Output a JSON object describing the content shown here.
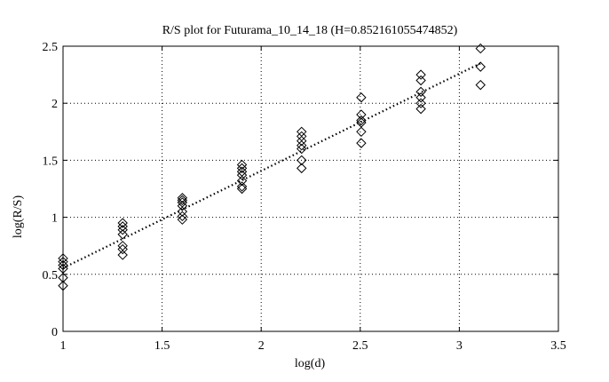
{
  "chart_data": {
    "type": "scatter",
    "title": "R/S plot for Futurama_10_14_18 (H=0.852161055474852)",
    "xlabel": "log(d)",
    "ylabel": "log(R/S)",
    "xlim": [
      1,
      3.5
    ],
    "ylim": [
      0,
      2.5
    ],
    "xticks": [
      1,
      1.5,
      2,
      2.5,
      3,
      3.5
    ],
    "yticks": [
      0,
      0.5,
      1,
      1.5,
      2,
      2.5
    ],
    "xtick_labels": [
      "1",
      "1.5",
      "2",
      "2.5",
      "3",
      "3.5"
    ],
    "ytick_labels": [
      "0",
      "0.5",
      "1",
      "1.5",
      "2",
      "2.5"
    ],
    "grid": true,
    "marker": "open-diamond",
    "series": [
      {
        "values_x": [
          1.0,
          1.0,
          1.0,
          1.0,
          1.0,
          1.0,
          1.301,
          1.301,
          1.301,
          1.301,
          1.301,
          1.301,
          1.301,
          1.602,
          1.602,
          1.602,
          1.602,
          1.602,
          1.602,
          1.602,
          1.903,
          1.903,
          1.903,
          1.903,
          1.903,
          1.903,
          1.903,
          2.204,
          2.204,
          2.204,
          2.204,
          2.204,
          2.204,
          2.204,
          2.505,
          2.505,
          2.505,
          2.505,
          2.505,
          2.505,
          2.806,
          2.806,
          2.806,
          2.806,
          2.806,
          2.806,
          3.107,
          3.107,
          3.107
        ],
        "values_y": [
          0.64,
          0.61,
          0.58,
          0.55,
          0.47,
          0.4,
          0.95,
          0.92,
          0.89,
          0.85,
          0.75,
          0.72,
          0.67,
          1.17,
          1.15,
          1.13,
          1.1,
          1.05,
          1.01,
          0.98,
          1.46,
          1.43,
          1.4,
          1.37,
          1.32,
          1.27,
          1.25,
          1.75,
          1.71,
          1.67,
          1.63,
          1.6,
          1.5,
          1.43,
          2.05,
          1.9,
          1.85,
          1.83,
          1.75,
          1.65,
          2.25,
          2.2,
          2.1,
          2.05,
          2.0,
          1.95,
          2.48,
          2.32,
          2.16
        ]
      }
    ],
    "fit_line": {
      "x": [
        1.0,
        3.107
      ],
      "y": [
        0.555,
        2.35
      ]
    }
  }
}
